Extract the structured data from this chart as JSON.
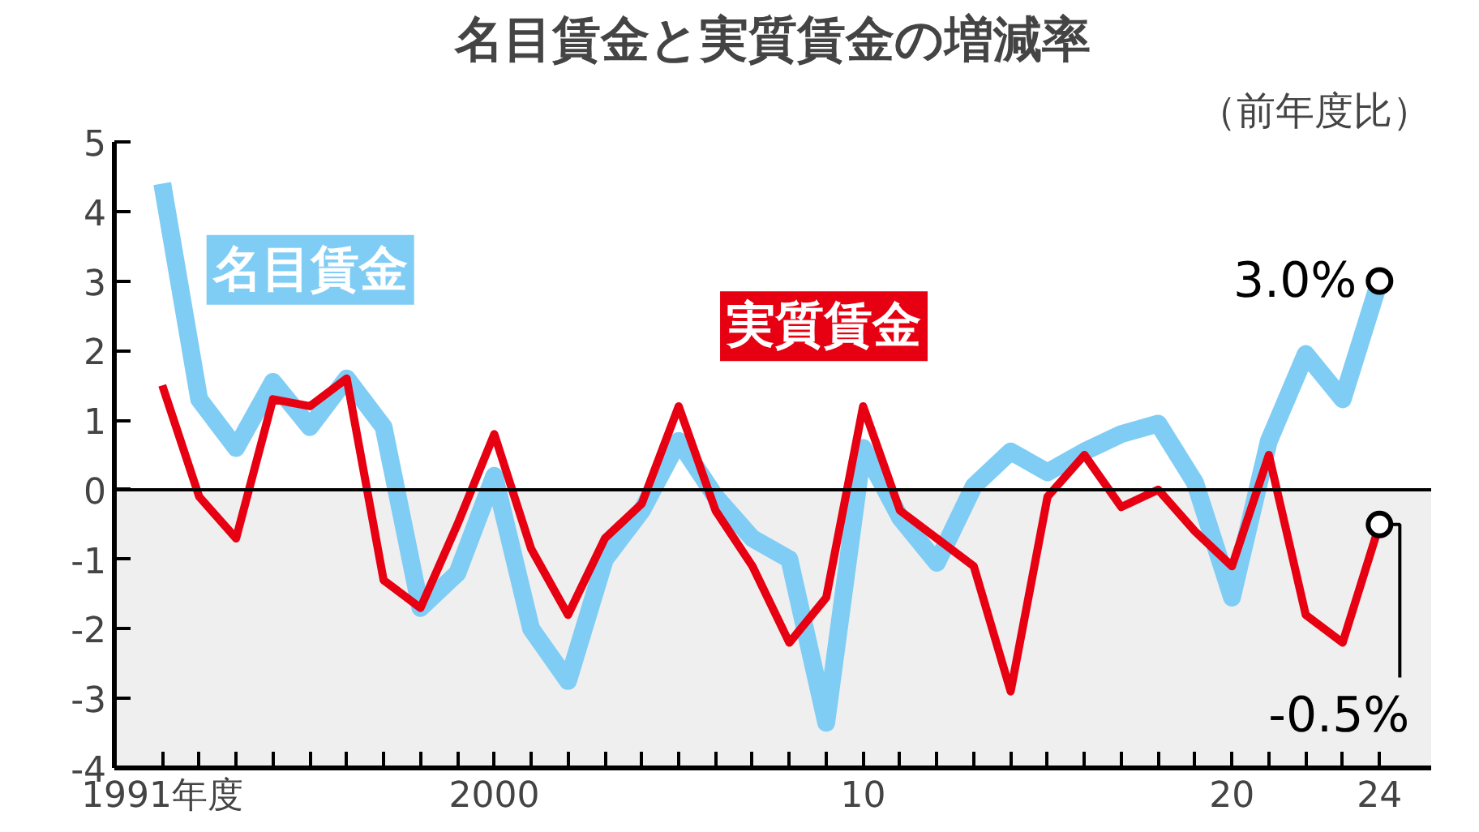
{
  "chart_data": {
    "type": "line",
    "title": "名目賃金と実質賃金の増減率",
    "subtitle": "（前年度比）",
    "x": [
      1991,
      1992,
      1993,
      1994,
      1995,
      1996,
      1997,
      1998,
      1999,
      2000,
      2001,
      2002,
      2003,
      2004,
      2005,
      2006,
      2007,
      2008,
      2009,
      2010,
      2011,
      2012,
      2013,
      2014,
      2015,
      2016,
      2017,
      2018,
      2019,
      2020,
      2021,
      2022,
      2023,
      2024
    ],
    "series": [
      {
        "name": "名目賃金",
        "color": "#7fcdf5",
        "values": [
          4.4,
          1.3,
          0.6,
          1.55,
          0.9,
          1.6,
          0.9,
          -1.7,
          -1.2,
          0.2,
          -2.0,
          -2.75,
          -1.0,
          -0.3,
          0.7,
          -0.1,
          -0.7,
          -1.0,
          -3.35,
          0.6,
          -0.4,
          -1.05,
          0.05,
          0.55,
          0.25,
          0.55,
          0.8,
          0.95,
          0.1,
          -1.55,
          0.7,
          1.95,
          1.3,
          3.0
        ]
      },
      {
        "name": "実質賃金",
        "color": "#e60012",
        "values": [
          1.5,
          -0.1,
          -0.7,
          1.3,
          1.2,
          1.6,
          -1.3,
          -1.7,
          -0.5,
          0.8,
          -0.85,
          -1.8,
          -0.7,
          -0.2,
          1.2,
          -0.3,
          -1.1,
          -2.2,
          -1.55,
          1.2,
          -0.3,
          -0.7,
          -1.1,
          -2.9,
          -0.1,
          0.5,
          -0.25,
          0.0,
          -0.6,
          -1.1,
          0.5,
          -1.8,
          -2.2,
          -0.5
        ]
      }
    ],
    "xlim": [
      1989.7,
      2025.4
    ],
    "xticks": [
      {
        "value": 1991,
        "label": "1991年度"
      },
      {
        "value": 1992,
        "label": null
      },
      {
        "value": 1993,
        "label": null
      },
      {
        "value": 1994,
        "label": null
      },
      {
        "value": 1995,
        "label": null
      },
      {
        "value": 1996,
        "label": null
      },
      {
        "value": 1997,
        "label": null
      },
      {
        "value": 1998,
        "label": null
      },
      {
        "value": 1999,
        "label": null
      },
      2000,
      {
        "value": 2001,
        "label": null
      },
      {
        "value": 2002,
        "label": null
      },
      {
        "value": 2003,
        "label": null
      },
      {
        "value": 2004,
        "label": null
      },
      {
        "value": 2005,
        "label": null
      },
      {
        "value": 2006,
        "label": null
      },
      {
        "value": 2007,
        "label": null
      },
      {
        "value": 2008,
        "label": null
      },
      {
        "value": 2009,
        "label": null
      },
      {
        "value": 2010,
        "label": "10"
      },
      {
        "value": 2011,
        "label": null
      },
      {
        "value": 2012,
        "label": null
      },
      {
        "value": 2013,
        "label": null
      },
      {
        "value": 2014,
        "label": null
      },
      {
        "value": 2015,
        "label": null
      },
      {
        "value": 2016,
        "label": null
      },
      {
        "value": 2017,
        "label": null
      },
      {
        "value": 2018,
        "label": null
      },
      {
        "value": 2019,
        "label": null
      },
      {
        "value": 2020,
        "label": "20"
      },
      {
        "value": 2021,
        "label": null
      },
      {
        "value": 2022,
        "label": null
      },
      {
        "value": 2023,
        "label": null
      },
      {
        "value": 2024,
        "label": "24"
      }
    ],
    "ylim": [
      -4,
      5
    ],
    "yticks": [
      -4,
      -3,
      -2,
      -1,
      0,
      1,
      2,
      3,
      4,
      5
    ],
    "ref_lines": [
      {
        "axis": "y",
        "value": 0,
        "color": "#000000"
      }
    ],
    "bands": [
      {
        "axis": "y",
        "from": -4,
        "to": 0,
        "color": "#efefef"
      }
    ],
    "annotations": [
      {
        "text": "3.0%",
        "x": 2024,
        "y": 3.0
      },
      {
        "text": "-0.5%",
        "x": 2024,
        "y": -0.5
      }
    ],
    "grid": false,
    "legend": false,
    "marker": "none",
    "line_style": "solid"
  }
}
